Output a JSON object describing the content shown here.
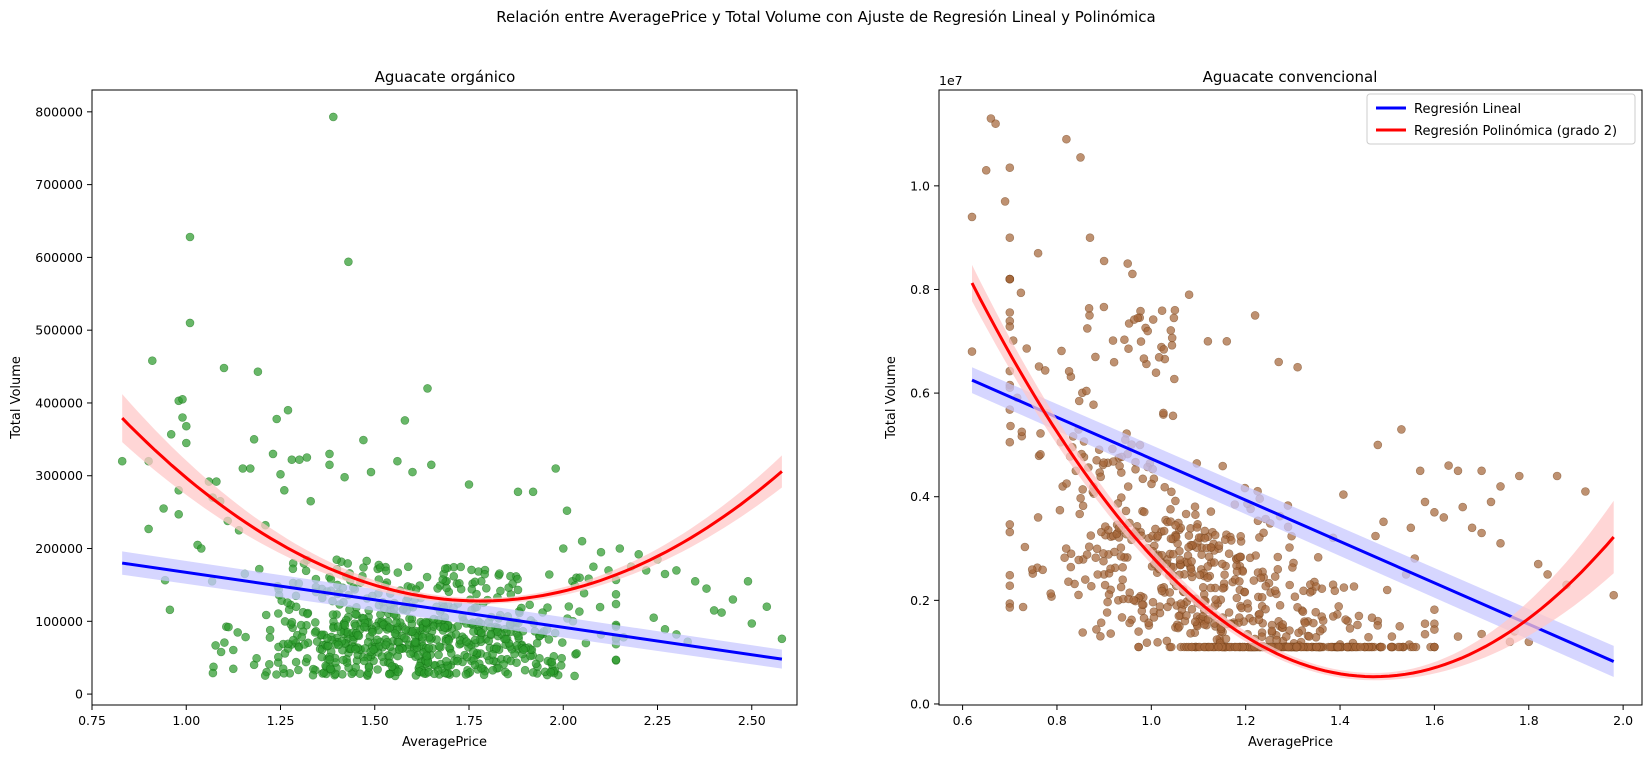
{
  "figure": {
    "suptitle": "Relación entre AveragePrice y Total Volume con Ajuste de Regresión Lineal y Polinómica"
  },
  "legend": {
    "linear_label": "Regresión Lineal",
    "poly_label": "Regresión Polinómica (grado 2)",
    "placement": "upper-right of right panel"
  },
  "colors": {
    "organic_points": "#2e9b2e",
    "organic_edge": "#0b6b0b",
    "conventional_points": "#a5673a",
    "conventional_edge": "#6e3a12",
    "linear_line": "#0000ff",
    "linear_band": "#c8c8ff",
    "poly_line": "#ff0000",
    "poly_band": "#ffc8c8"
  },
  "chart_data": [
    {
      "type": "scatter",
      "title": "Aguacate orgánico",
      "xlabel": "AveragePrice",
      "ylabel": "Total Volume",
      "xlim": [
        0.75,
        2.62
      ],
      "ylim": [
        -15000,
        830000
      ],
      "xticks": [
        0.75,
        1.0,
        1.25,
        1.5,
        1.75,
        2.0,
        2.25,
        2.5
      ],
      "xticklabels": [
        "0.75",
        "1.00",
        "1.25",
        "1.50",
        "1.75",
        "2.00",
        "2.25",
        "2.50"
      ],
      "yticks": [
        0,
        100000,
        200000,
        300000,
        400000,
        500000,
        600000,
        700000,
        800000
      ],
      "yticklabels": [
        "0",
        "100000",
        "200000",
        "300000",
        "400000",
        "500000",
        "600000",
        "700000",
        "800000"
      ],
      "offset_text": "",
      "grid": false,
      "legend": false,
      "point_color_key": "organic_points",
      "point_edge_key": "organic_edge",
      "points": [
        [
          0.83,
          320000
        ],
        [
          0.9,
          320000
        ],
        [
          0.91,
          458000
        ],
        [
          0.9,
          227000
        ],
        [
          0.94,
          255000
        ],
        [
          0.96,
          357000
        ],
        [
          0.98,
          280000
        ],
        [
          0.98,
          403000
        ],
        [
          0.99,
          405000
        ],
        [
          0.99,
          380000
        ],
        [
          1.0,
          368000
        ],
        [
          1.0,
          345000
        ],
        [
          1.01,
          628000
        ],
        [
          1.01,
          510000
        ],
        [
          0.98,
          247000
        ],
        [
          1.03,
          205000
        ],
        [
          1.04,
          200000
        ],
        [
          1.06,
          292000
        ],
        [
          1.07,
          270000
        ],
        [
          1.08,
          292000
        ],
        [
          1.09,
          265000
        ],
        [
          1.1,
          448000
        ],
        [
          1.11,
          238000
        ],
        [
          1.14,
          225000
        ],
        [
          1.15,
          310000
        ],
        [
          1.17,
          310000
        ],
        [
          1.18,
          350000
        ],
        [
          1.19,
          443000
        ],
        [
          1.21,
          232000
        ],
        [
          1.23,
          330000
        ],
        [
          1.24,
          378000
        ],
        [
          1.25,
          302000
        ],
        [
          1.26,
          280000
        ],
        [
          1.27,
          390000
        ],
        [
          1.28,
          322000
        ],
        [
          1.3,
          322000
        ],
        [
          1.32,
          325000
        ],
        [
          1.33,
          265000
        ],
        [
          1.38,
          330000
        ],
        [
          1.38,
          315000
        ],
        [
          1.39,
          793000
        ],
        [
          1.42,
          298000
        ],
        [
          1.43,
          594000
        ],
        [
          1.47,
          349000
        ],
        [
          1.49,
          305000
        ],
        [
          1.56,
          320000
        ],
        [
          1.58,
          376000
        ],
        [
          1.6,
          305000
        ],
        [
          1.64,
          420000
        ],
        [
          1.65,
          315000
        ],
        [
          1.75,
          288000
        ],
        [
          1.98,
          310000
        ],
        [
          2.01,
          252000
        ],
        [
          1.88,
          278000
        ],
        [
          1.92,
          278000
        ],
        [
          2.0,
          200000
        ],
        [
          2.05,
          210000
        ],
        [
          2.08,
          175000
        ],
        [
          2.1,
          195000
        ],
        [
          2.12,
          170000
        ],
        [
          2.15,
          200000
        ],
        [
          2.18,
          175000
        ],
        [
          2.2,
          192000
        ],
        [
          2.22,
          170000
        ],
        [
          2.25,
          185000
        ],
        [
          2.27,
          165000
        ],
        [
          2.3,
          170000
        ],
        [
          2.35,
          155000
        ],
        [
          2.38,
          145000
        ],
        [
          2.4,
          115000
        ],
        [
          2.42,
          112000
        ],
        [
          2.45,
          130000
        ],
        [
          2.49,
          155000
        ],
        [
          2.5,
          97000
        ],
        [
          2.54,
          120000
        ],
        [
          2.58,
          76000
        ],
        [
          2.27,
          89000
        ],
        [
          2.3,
          82000
        ],
        [
          2.24,
          105000
        ],
        [
          2.33,
          72000
        ],
        [
          2.14,
          95000
        ],
        [
          2.1,
          82000
        ],
        [
          2.16,
          78000
        ],
        [
          2.06,
          70000
        ],
        [
          2.03,
          25000
        ]
      ],
      "cloud": {
        "x_center": 1.62,
        "x_spread": 0.24,
        "n": 700,
        "seed": 11
      },
      "series": [
        {
          "name": "Regresión Lineal",
          "kind": "linear",
          "x": [
            0.83,
            2.58
          ],
          "y": [
            180000,
            48000
          ],
          "band_halfwidth": [
            16000,
            13000
          ]
        },
        {
          "name": "Regresión Polinómica (grado 2)",
          "kind": "poly",
          "coef": [
            1009826,
            -990827,
            278290
          ],
          "x_range": [
            0.83,
            2.58
          ],
          "band_halfwidth_ends": [
            33000,
            22000
          ],
          "band_halfwidth_mid": 4000
        }
      ]
    },
    {
      "type": "scatter",
      "title": "Aguacate convencional",
      "xlabel": "AveragePrice",
      "ylabel": "Total Volume",
      "xlim": [
        0.55,
        2.04
      ],
      "ylim": [
        -0.02,
        11.85
      ],
      "xticks": [
        0.6,
        0.8,
        1.0,
        1.2,
        1.4,
        1.6,
        1.8,
        2.0
      ],
      "xticklabels": [
        "0.6",
        "0.8",
        "1.0",
        "1.2",
        "1.4",
        "1.6",
        "1.8",
        "2.0"
      ],
      "yticks": [
        0,
        2,
        4,
        6,
        8,
        10
      ],
      "yticklabels": [
        "0.0",
        "0.2",
        "0.4",
        "0.6",
        "0.8",
        "1.0"
      ],
      "offset_text": "1e7",
      "grid": false,
      "legend": true,
      "point_color_key": "conventional_points",
      "point_edge_key": "conventional_edge",
      "points": [
        [
          0.62,
          9.4
        ],
        [
          0.62,
          6.8
        ],
        [
          0.65,
          10.3
        ],
        [
          0.66,
          11.3
        ],
        [
          0.67,
          11.2
        ],
        [
          0.69,
          9.7
        ],
        [
          0.7,
          10.35
        ],
        [
          0.7,
          9.0
        ],
        [
          0.76,
          8.7
        ],
        [
          0.82,
          10.9
        ],
        [
          0.85,
          10.55
        ],
        [
          0.87,
          9.0
        ],
        [
          0.9,
          8.55
        ],
        [
          0.95,
          8.5
        ],
        [
          0.96,
          8.3
        ],
        [
          1.05,
          7.6
        ],
        [
          1.08,
          7.9
        ],
        [
          1.12,
          7.0
        ],
        [
          1.16,
          7.0
        ],
        [
          1.22,
          7.5
        ],
        [
          1.31,
          6.5
        ],
        [
          1.27,
          6.6
        ],
        [
          0.76,
          3.6
        ],
        [
          0.83,
          2.9
        ],
        [
          0.86,
          2.4
        ],
        [
          0.84,
          4.5
        ],
        [
          0.9,
          2.5
        ],
        [
          0.93,
          2.0
        ],
        [
          1.48,
          5.0
        ],
        [
          1.53,
          5.3
        ],
        [
          1.57,
          4.5
        ],
        [
          1.63,
          4.6
        ],
        [
          1.65,
          4.5
        ],
        [
          1.7,
          4.5
        ],
        [
          1.74,
          4.2
        ],
        [
          1.78,
          4.4
        ],
        [
          1.86,
          4.4
        ],
        [
          1.92,
          4.1
        ],
        [
          1.98,
          2.1
        ],
        [
          1.82,
          2.7
        ],
        [
          1.84,
          2.5
        ],
        [
          1.88,
          2.3
        ],
        [
          1.76,
          1.2
        ],
        [
          1.77,
          1.4
        ],
        [
          1.8,
          1.2
        ],
        [
          1.7,
          1.35
        ],
        [
          1.65,
          1.3
        ],
        [
          1.6,
          1.55
        ],
        [
          1.58,
          1.55
        ],
        [
          1.55,
          1.1
        ],
        [
          1.51,
          1.3
        ],
        [
          1.48,
          1.6
        ],
        [
          1.44,
          1.7
        ],
        [
          1.4,
          1.15
        ],
        [
          1.58,
          3.9
        ],
        [
          1.6,
          3.7
        ],
        [
          1.66,
          3.8
        ],
        [
          1.72,
          3.9
        ],
        [
          1.7,
          3.3
        ],
        [
          1.74,
          3.1
        ],
        [
          1.68,
          3.4
        ],
        [
          1.62,
          3.6
        ],
        [
          1.55,
          3.4
        ],
        [
          1.54,
          2.5
        ],
        [
          1.5,
          2.2
        ]
      ],
      "cloud": {
        "x_center": 1.12,
        "x_spread": 0.2,
        "n": 760,
        "seed": 23
      },
      "series": [
        {
          "name": "Regresión Lineal",
          "kind": "linear",
          "x": [
            0.62,
            1.98
          ],
          "y": [
            6.25,
            0.82
          ],
          "band_halfwidth": [
            0.25,
            0.3
          ]
        },
        {
          "name": "Regresión Polinómica (grado 2)",
          "kind": "poly",
          "coef": [
            23.2,
            -30.8,
            10.46
          ],
          "x_range": [
            0.62,
            1.98
          ],
          "band_halfwidth_ends": [
            0.35,
            0.7
          ],
          "band_halfwidth_mid": 0.07
        }
      ]
    }
  ]
}
